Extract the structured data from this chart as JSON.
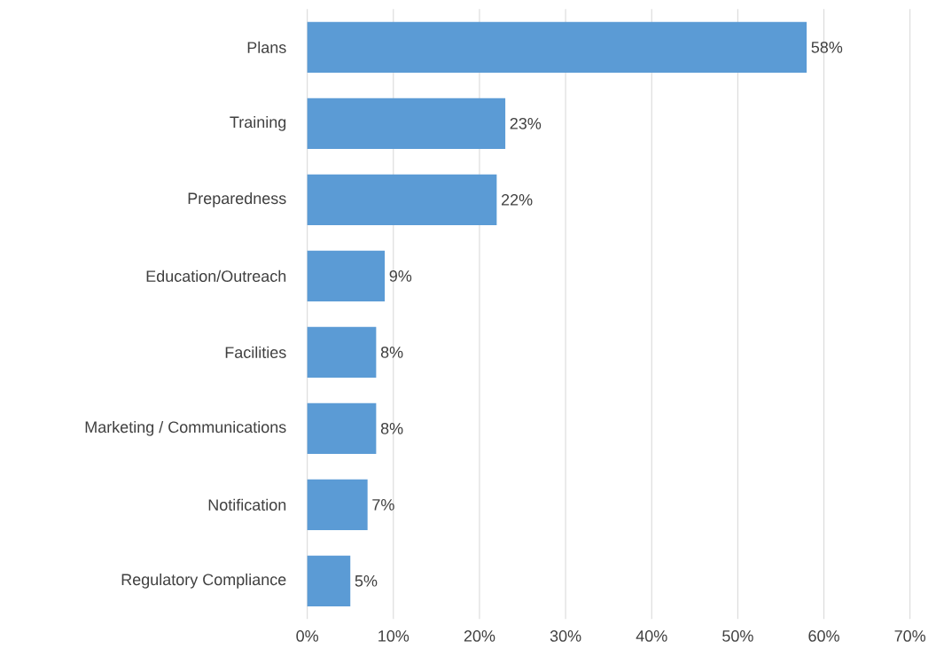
{
  "chart_data": {
    "type": "bar",
    "orientation": "horizontal",
    "categories": [
      "Plans",
      "Training",
      "Preparedness",
      "Education/Outreach",
      "Facilities",
      "Marketing / Communications",
      "Notification",
      "Regulatory Compliance"
    ],
    "values": [
      58,
      23,
      22,
      9,
      8,
      8,
      7,
      5
    ],
    "value_labels": [
      "58%",
      "23%",
      "22%",
      "9%",
      "8%",
      "8%",
      "7%",
      "5%"
    ],
    "color": "#5b9bd5",
    "xlim": [
      0,
      70
    ],
    "xticks": [
      {
        "value": 0,
        "label": "0%"
      },
      {
        "value": 10,
        "label": "10%"
      },
      {
        "value": 20,
        "label": "20%"
      },
      {
        "value": 30,
        "label": "30%"
      },
      {
        "value": 40,
        "label": "40%"
      },
      {
        "value": 50,
        "label": "50%"
      },
      {
        "value": 60,
        "label": "60%"
      },
      {
        "value": 70,
        "label": "70%"
      }
    ],
    "grid": "x"
  }
}
